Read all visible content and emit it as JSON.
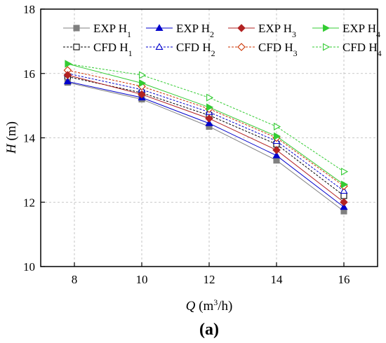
{
  "chart_data": {
    "type": "line",
    "panel_label": "(a)",
    "x_title_var": "Q",
    "x_title_unit_prefix": " (m",
    "x_title_unit_sup": "3",
    "x_title_unit_suffix": "/h)",
    "y_title_var": "H",
    "y_title_unit": " (m)",
    "xlim": [
      7,
      17
    ],
    "ylim": [
      10,
      18
    ],
    "x_ticks": [
      8,
      10,
      12,
      14,
      16
    ],
    "y_ticks": [
      10,
      12,
      14,
      16,
      18
    ],
    "grid": true,
    "legend_position": "top",
    "x": [
      7.8,
      10,
      12,
      14,
      16
    ],
    "series": [
      {
        "prefix": "EXP H",
        "sub": "1",
        "color": "#808080",
        "marker": "square",
        "filled": true,
        "dashed": false,
        "values": [
          15.72,
          15.2,
          14.35,
          13.3,
          11.72
        ]
      },
      {
        "prefix": "EXP H",
        "sub": "2",
        "color": "#0000cc",
        "marker": "triangle-up",
        "filled": true,
        "dashed": false,
        "values": [
          15.75,
          15.25,
          14.45,
          13.45,
          11.85
        ]
      },
      {
        "prefix": "EXP H",
        "sub": "3",
        "color": "#b22222",
        "marker": "diamond",
        "filled": true,
        "dashed": false,
        "values": [
          15.95,
          15.35,
          14.6,
          13.62,
          12.0
        ]
      },
      {
        "prefix": "EXP H",
        "sub": "4",
        "color": "#33cc33",
        "marker": "triangle-right",
        "filled": true,
        "dashed": false,
        "values": [
          16.3,
          15.7,
          14.95,
          14.05,
          12.55
        ]
      },
      {
        "prefix": "CFD H",
        "sub": "1",
        "color": "#000000",
        "marker": "square",
        "filled": false,
        "dashed": true,
        "values": [
          15.9,
          15.4,
          14.7,
          13.8,
          12.2
        ]
      },
      {
        "prefix": "CFD H",
        "sub": "2",
        "color": "#0000cc",
        "marker": "triangle-up",
        "filled": false,
        "dashed": true,
        "values": [
          16.0,
          15.5,
          14.8,
          13.9,
          12.35
        ]
      },
      {
        "prefix": "CFD H",
        "sub": "3",
        "color": "#cc3300",
        "marker": "diamond",
        "filled": false,
        "dashed": true,
        "values": [
          16.1,
          15.6,
          14.9,
          14.0,
          12.5
        ]
      },
      {
        "prefix": "CFD H",
        "sub": "4",
        "color": "#33cc33",
        "marker": "triangle-right",
        "filled": false,
        "dashed": true,
        "values": [
          16.3,
          15.95,
          15.25,
          14.35,
          12.95
        ]
      }
    ]
  }
}
